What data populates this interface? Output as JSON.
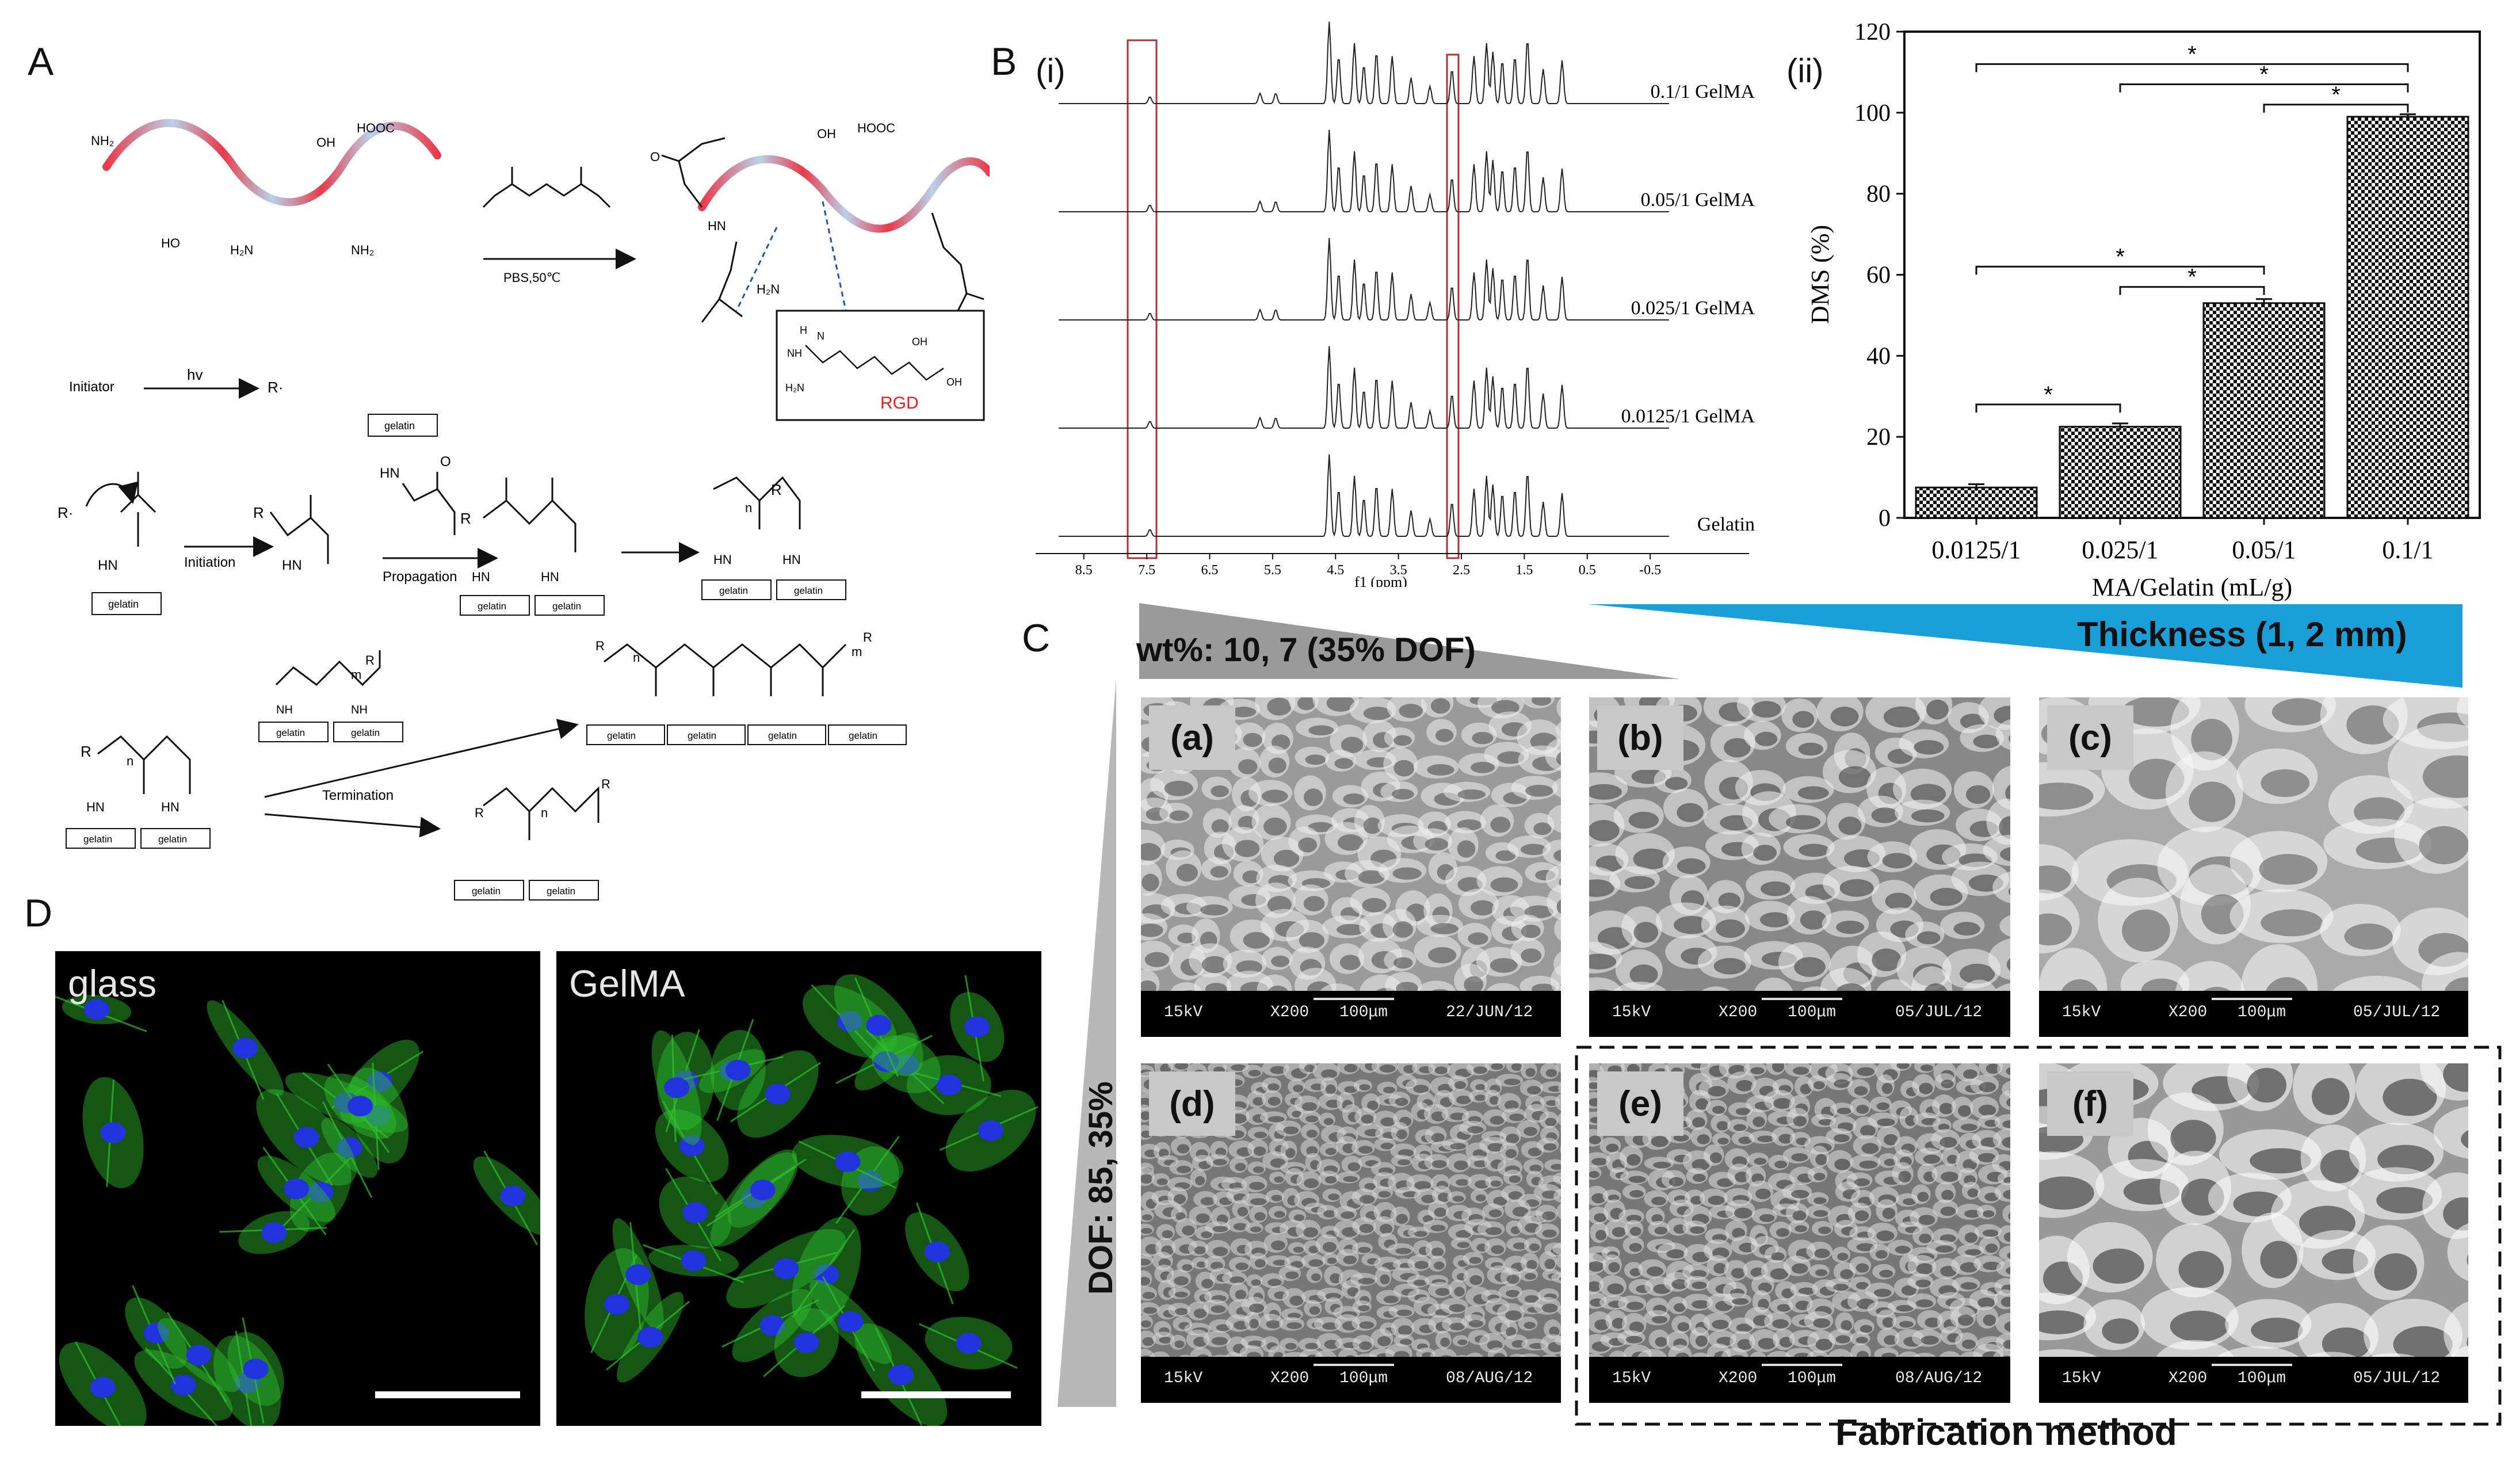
{
  "panel_labels": {
    "a": "A",
    "b": "B",
    "c": "C",
    "d": "D"
  },
  "panelA": {
    "groups": {
      "nh2": "NH₂",
      "oh": "OH",
      "hooc": "HOOC",
      "h2n": "H₂N"
    },
    "reaction": "PBS,50℃",
    "rgd": {
      "label": "RGD",
      "atoms": [
        "H",
        "N",
        "NH",
        "H₂N",
        "O",
        "OH",
        "NH₂"
      ]
    },
    "initiator": "Initiator",
    "hv": "hv",
    "radical": "R·",
    "gelatin": "gelatin",
    "hn": "HN",
    "nh": "NH",
    "o": "O",
    "r": "R",
    "n": "n",
    "m": "m",
    "initiation": "Initiation",
    "propagation": "Propagation",
    "termination": "Termination"
  },
  "panelB": {
    "sub_i": "(i)",
    "sub_ii": "(ii)",
    "nmr": {
      "spectra": [
        "0.1/1 GelMA",
        "0.05/1 GelMA",
        "0.025/1 GelMA",
        "0.0125/1 GelMA",
        "Gelatin"
      ],
      "xticks": [
        "8.5",
        "7.5",
        "6.5",
        "5.5",
        "4.5",
        "3.5",
        "2.5",
        "1.5",
        "0.5",
        "-0.5"
      ],
      "xlabel": "f1 (ppm)"
    },
    "star": "*"
  },
  "chart_data": {
    "type": "bar",
    "categories": [
      "0.0125/1",
      "0.025/1",
      "0.05/1",
      "0.1/1"
    ],
    "values": [
      7.5,
      22.5,
      53,
      99
    ],
    "errors": [
      0.8,
      0.8,
      1.0,
      0.6
    ],
    "xlabel": "MA/Gelatin (mL/g)",
    "ylabel": "DMS (%)",
    "ylim": [
      0,
      120
    ],
    "yticks": [
      0,
      20,
      40,
      60,
      80,
      100,
      120
    ],
    "fill": "checkerboard",
    "grid": false
  },
  "panelC": {
    "wt_label": "wt%: 10, 7 (35% DOF)",
    "thickness_label": "Thickness (1, 2 mm)",
    "dof_label": "DOF: 85, 35%",
    "fab_label": "Fabrication method",
    "colors": {
      "gray_wedge": "#9a9a9a",
      "blue_wedge": "#1b9fd8"
    },
    "images": [
      {
        "tag": "(a)",
        "kv": "15kV",
        "mag": "X200",
        "scale": "100μm",
        "date": "22/JUN/12"
      },
      {
        "tag": "(b)",
        "kv": "15kV",
        "mag": "X200",
        "scale": "100μm",
        "date": "05/JUL/12"
      },
      {
        "tag": "(c)",
        "kv": "15kV",
        "mag": "X200",
        "scale": "100μm",
        "date": "05/JUL/12"
      },
      {
        "tag": "(d)",
        "kv": "15kV",
        "mag": "X200",
        "scale": "100μm",
        "date": "08/AUG/12"
      },
      {
        "tag": "(e)",
        "kv": "15kV",
        "mag": "X200",
        "scale": "100μm",
        "date": "08/AUG/12"
      },
      {
        "tag": "(f)",
        "kv": "15kV",
        "mag": "X200",
        "scale": "100μm",
        "date": "05/JUL/12"
      }
    ]
  },
  "panelD": {
    "left": "glass",
    "right": "GelMA",
    "colors": {
      "actin": "#2fbf2f",
      "nuclei": "#2233dd"
    }
  }
}
